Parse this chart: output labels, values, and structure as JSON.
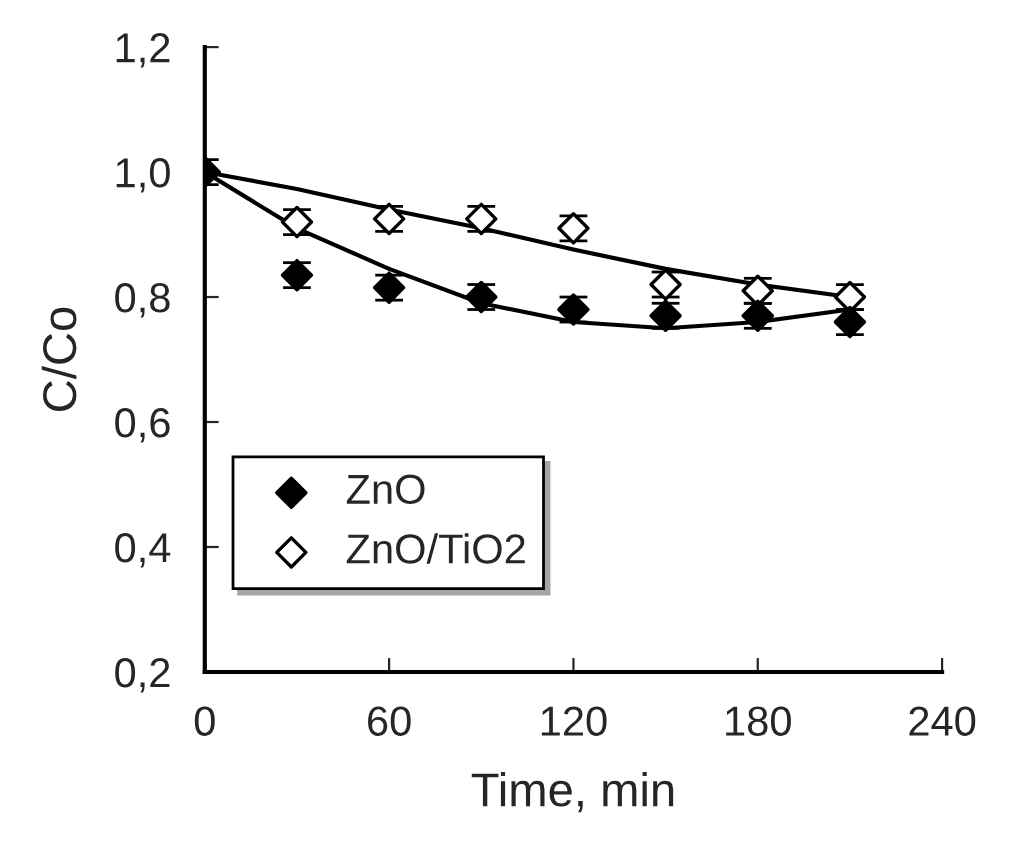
{
  "chart_data": {
    "type": "scatter",
    "xlabel": "Time, min",
    "ylabel": "C/Co",
    "xlim": [
      0,
      240
    ],
    "xticks": [
      0,
      60,
      120,
      180,
      240
    ],
    "ylim": [
      0.2,
      1.2
    ],
    "yticks": [
      {
        "value": 0.2,
        "label": "0,2"
      },
      {
        "value": 0.4,
        "label": "0,4"
      },
      {
        "value": 0.6,
        "label": "0,6"
      },
      {
        "value": 0.8,
        "label": "0,8"
      },
      {
        "value": 1.0,
        "label": "1,0"
      },
      {
        "value": 1.2,
        "label": "1,2"
      }
    ],
    "grid": false,
    "legend": "bottom left",
    "x": [
      0,
      30,
      60,
      90,
      120,
      150,
      180,
      210
    ],
    "series": [
      {
        "name": "ZnO",
        "color": "#000000",
        "marker": "diamond",
        "values": [
          1.0,
          0.835,
          0.815,
          0.8,
          0.78,
          0.77,
          0.77,
          0.76
        ],
        "errors": [
          0.02,
          0.02,
          0.02,
          0.02,
          0.02,
          0.02,
          0.02,
          0.02
        ]
      },
      {
        "name": "ZnO/TiO2",
        "color": "#ffffff",
        "marker": "diamond",
        "values": [
          null,
          0.92,
          0.925,
          0.925,
          0.91,
          0.82,
          0.81,
          0.8
        ],
        "errors": [
          null,
          0.02,
          0.02,
          0.02,
          0.02,
          0.02,
          0.02,
          0.02
        ]
      },
      {
        "type": "line",
        "color": "#000000",
        "marker": "none",
        "values": [
          1.0,
          0.91,
          0.845,
          0.79,
          0.76,
          0.75,
          0.76,
          0.78
        ]
      },
      {
        "type": "line",
        "color": "#000000",
        "marker": "none",
        "values": [
          1.0,
          0.973,
          0.94,
          0.91,
          0.876,
          0.845,
          0.82,
          0.8
        ]
      }
    ]
  }
}
